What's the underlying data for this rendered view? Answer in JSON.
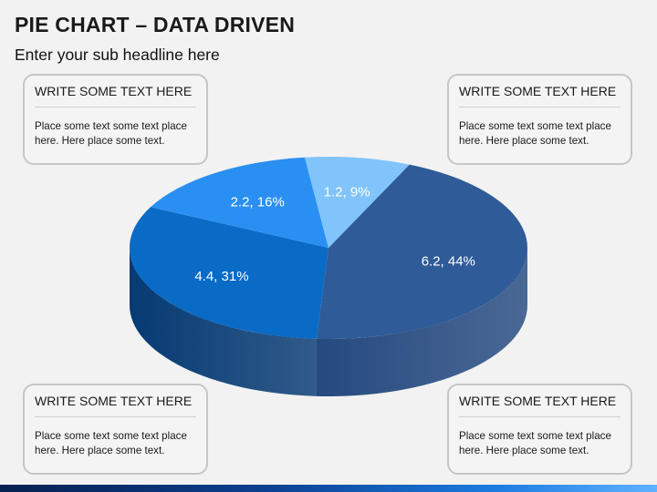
{
  "header": {
    "title": "PIE CHART – DATA DRIVEN",
    "subtitle": "Enter your sub headline here"
  },
  "boxes": [
    {
      "heading": "WRITE SOME TEXT HERE",
      "body": "Place some text some text place here. Here place some text."
    },
    {
      "heading": "WRITE SOME TEXT HERE",
      "body": "Place some text some text place here. Here place some text."
    },
    {
      "heading": "WRITE SOME TEXT HERE",
      "body": "Place some text some text place here. Here place some text."
    },
    {
      "heading": "WRITE SOME TEXT HERE",
      "body": "Place some text some text place here. Here place some text."
    }
  ],
  "chart_data": {
    "type": "pie",
    "style": "3d",
    "slices": [
      {
        "value": 6.2,
        "label": "6.2, 44%",
        "color": "#2f5b98",
        "side_color": "#254a80"
      },
      {
        "value": 4.4,
        "label": "4.4, 31%",
        "color": "#0a6bc6",
        "side_color": "#063a73"
      },
      {
        "value": 2.2,
        "label": "2.2, 16%",
        "color": "#2a8ff2",
        "side_color": "#1a55b0"
      },
      {
        "value": 1.2,
        "label": "1.2, 9%",
        "color": "#80c4fb",
        "side_color": "#6c9ed4"
      }
    ],
    "title": "",
    "legend": "none"
  }
}
